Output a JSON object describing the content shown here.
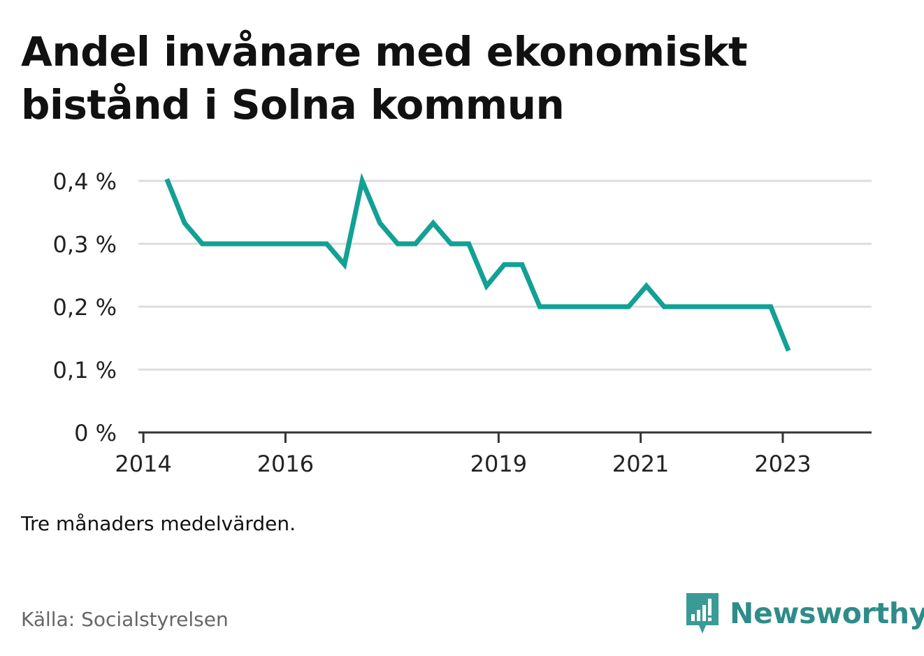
{
  "title": "Andel invånare med ekonomiskt bistånd i Solna kommun",
  "note": "Tre månaders medelvärden.",
  "source": "Källa: Socialstyrelsen",
  "brand": {
    "name": "Newsworthy",
    "icon": "newsworthy-logo-icon",
    "color": "#3a9a96"
  },
  "colors": {
    "line": "#13a095",
    "grid": "#dddddd",
    "axis": "#333333"
  },
  "chart_data": {
    "type": "line",
    "title": "Andel invånare med ekonomiskt bistånd i Solna kommun",
    "xlabel": "",
    "ylabel": "",
    "xlim": [
      2013.93,
      2024.25
    ],
    "ylim": [
      0,
      0.4
    ],
    "y_ticks": [
      0,
      0.1,
      0.2,
      0.3,
      0.4
    ],
    "y_tick_labels": [
      "0 %",
      "0,1 %",
      "0,2 %",
      "0,3 %",
      "0,4 %"
    ],
    "x_ticks": [
      2014,
      2016,
      2019,
      2021,
      2023
    ],
    "x_tick_labels": [
      "2014",
      "2016",
      "2019",
      "2021",
      "2023"
    ],
    "grid": true,
    "legend": "none",
    "series": [
      {
        "color": "#13a095",
        "x": [
          2014.33,
          2014.58,
          2014.83,
          2015.08,
          2015.33,
          2015.58,
          2015.83,
          2016.08,
          2016.33,
          2016.58,
          2016.83,
          2017.08,
          2017.33,
          2017.58,
          2017.83,
          2018.08,
          2018.33,
          2018.58,
          2018.83,
          2019.08,
          2019.33,
          2019.58,
          2019.83,
          2020.08,
          2020.33,
          2020.58,
          2020.83,
          2021.08,
          2021.33,
          2021.58,
          2021.83,
          2022.08,
          2022.33,
          2022.58,
          2022.83,
          2023.08
        ],
        "y": [
          0.403,
          0.333,
          0.3,
          0.3,
          0.3,
          0.3,
          0.3,
          0.3,
          0.3,
          0.3,
          0.267,
          0.4,
          0.333,
          0.3,
          0.3,
          0.333,
          0.3,
          0.3,
          0.233,
          0.267,
          0.267,
          0.2,
          0.2,
          0.2,
          0.2,
          0.2,
          0.2,
          0.233,
          0.2,
          0.2,
          0.2,
          0.2,
          0.2,
          0.2,
          0.2,
          0.13
        ]
      }
    ]
  }
}
